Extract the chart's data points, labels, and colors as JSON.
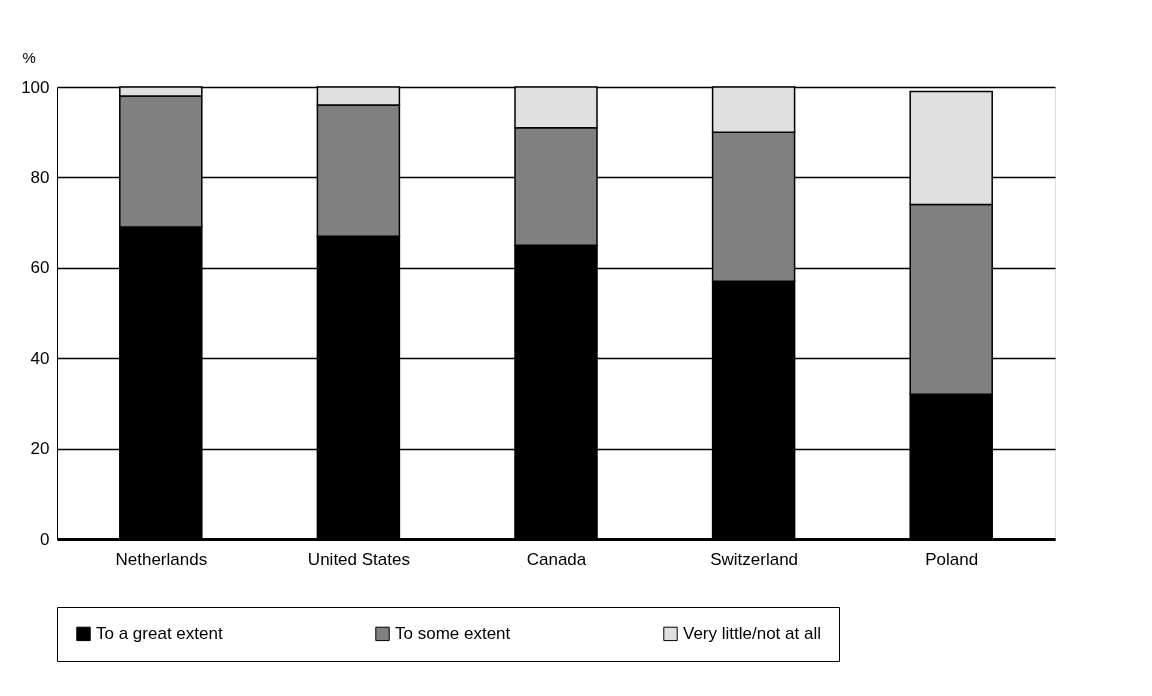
{
  "chart_data": {
    "type": "bar",
    "stacked": true,
    "ylabel": "%",
    "categories": [
      "Netherlands",
      "United States",
      "Canada",
      "Switzerland",
      "Poland"
    ],
    "series": [
      {
        "name": "To a great extent",
        "color": "#000000",
        "values": [
          69,
          67,
          65,
          57,
          32
        ]
      },
      {
        "name": "To some extent",
        "color": "#808080",
        "values": [
          29,
          29,
          26,
          33,
          42
        ]
      },
      {
        "name": "Very little/not at all",
        "color": "#e0e0e0",
        "values": [
          2,
          4,
          9,
          10,
          25
        ]
      }
    ],
    "ylim": [
      0,
      100
    ],
    "yticks": [
      0,
      20,
      40,
      60,
      80,
      100
    ],
    "grid": "y",
    "legend": "bottom"
  }
}
